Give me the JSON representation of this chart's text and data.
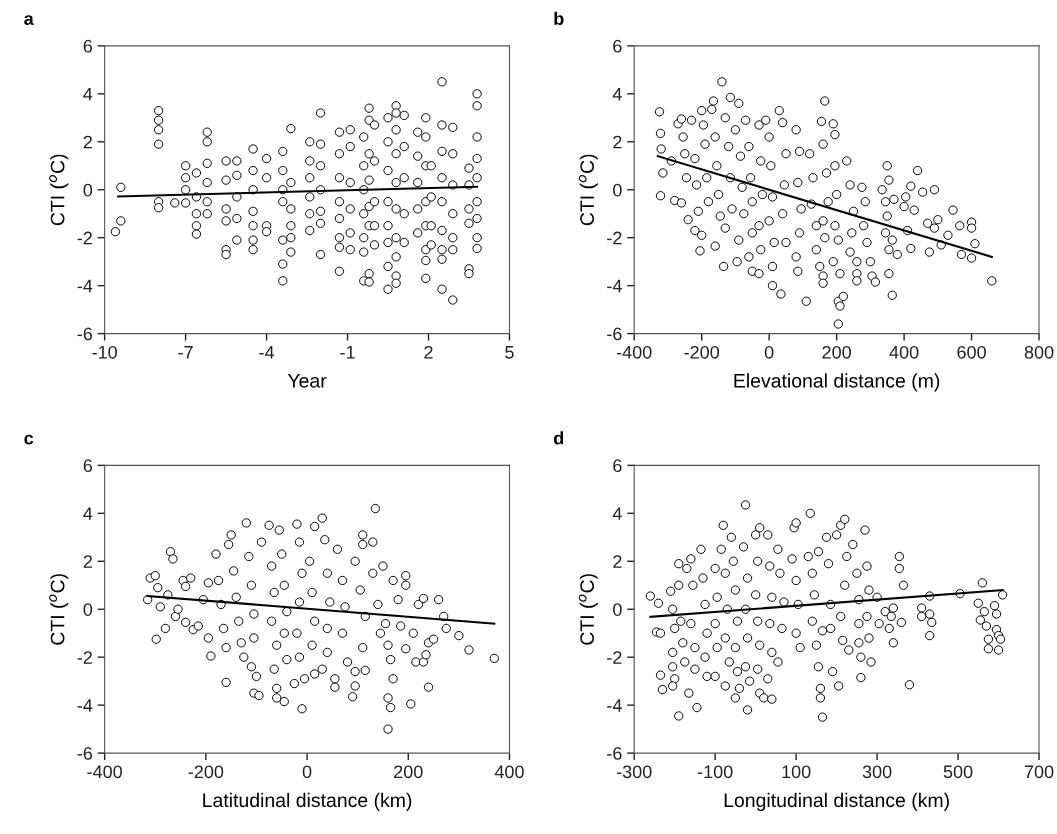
{
  "chart_data": [
    {
      "type": "scatter",
      "title": "a",
      "xlabel": "Year",
      "ylabel": "CTI ($^{o}$C)",
      "xlim": [
        -10,
        5
      ],
      "xticks": [
        -10,
        -7,
        -4,
        -1,
        2,
        5
      ],
      "ylim": [
        -6,
        6
      ],
      "yticks": [
        -6,
        -4,
        -2,
        0,
        2,
        4,
        6
      ],
      "grid": false,
      "series": [
        {
          "marker": "circle",
          "color": "#ffffff",
          "x": [
            -9.4,
            -9.4,
            -9.6,
            -8,
            -8,
            -8,
            -8,
            -8,
            -8,
            -7.4,
            -7,
            -7,
            -7,
            -7,
            -6.6,
            -6.6,
            -6.6,
            -6.6,
            -6.6,
            -6.2,
            -6.2,
            -6.2,
            -6.2,
            -6.2,
            -6.2,
            -5.5,
            -5.5,
            -5.5,
            -5.5,
            -5.5,
            -5.5,
            -5.1,
            -5.1,
            -5.1,
            -5.1,
            -5.1,
            -4.5,
            -4.5,
            -4.5,
            -4.5,
            -4.5,
            -4.5,
            -4.5,
            -4,
            -4,
            -4,
            -4,
            -3.4,
            -3.4,
            -3.4,
            -3.4,
            -3.4,
            -3.4,
            -3.4,
            -3.1,
            -3.1,
            -3.1,
            -3.1,
            -3.1,
            -3.1,
            -2.4,
            -2.4,
            -2.4,
            -2.4,
            -2.4,
            -2.4,
            -2,
            -2,
            -2,
            -2,
            -2,
            -2,
            -2,
            -1.3,
            -1.3,
            -1.3,
            -1.3,
            -1.3,
            -1.3,
            -1.3,
            -1.3,
            -0.9,
            -0.9,
            -0.9,
            -0.9,
            -0.9,
            -0.9,
            -0.4,
            -0.4,
            -0.4,
            -0.4,
            -0.4,
            -0.4,
            -0.4,
            -0.2,
            -0.2,
            -0.2,
            -0.2,
            -0.2,
            -0.2,
            -0.2,
            -0.2,
            0,
            0,
            0,
            0,
            0,
            0.5,
            0.5,
            0.5,
            0.5,
            0.5,
            0.5,
            0.5,
            0.5,
            0.8,
            0.8,
            0.8,
            0.8,
            0.8,
            0.8,
            0.8,
            0.8,
            0.8,
            0.8,
            1.1,
            1.1,
            1.1,
            1.1,
            1.1,
            1.6,
            1.6,
            1.6,
            1.6,
            1.6,
            1.9,
            1.9,
            1.9,
            1.9,
            1.9,
            1.9,
            1.9,
            1.9,
            2.1,
            2.1,
            2.1,
            2.1,
            2.5,
            2.5,
            2.5,
            2.5,
            2.5,
            2.5,
            2.5,
            2.5,
            2.5,
            2.9,
            2.9,
            2.9,
            2.9,
            2.9,
            2.9,
            2.9,
            3.5,
            3.5,
            3.5,
            3.5,
            3.5,
            3.5,
            3.8,
            3.8,
            3.8,
            3.8,
            3.8,
            3.8,
            3.8,
            3.8,
            3.8
          ],
          "values": [
            0.1,
            -1.3,
            -1.75,
            3.3,
            2.9,
            2.5,
            1.9,
            -0.5,
            -0.75,
            -0.55,
            1.0,
            0.5,
            0.0,
            -0.55,
            0.7,
            -0.3,
            -1.0,
            -1.5,
            -1.85,
            2.4,
            2.0,
            1.1,
            0.3,
            -0.5,
            -1.0,
            1.2,
            0.4,
            -0.8,
            -1.3,
            -2.5,
            -2.7,
            1.2,
            0.6,
            -0.3,
            -1.2,
            -2.1,
            1.7,
            0.8,
            0.0,
            -0.9,
            -1.5,
            -2.1,
            -2.5,
            1.3,
            0.5,
            -1.5,
            -1.75,
            1.6,
            0.8,
            0.0,
            -0.5,
            -2.1,
            -3.1,
            -3.8,
            2.55,
            0.3,
            -0.8,
            -1.5,
            -2.0,
            -2.6,
            2.0,
            1.2,
            0.5,
            -0.3,
            -1.0,
            -1.7,
            3.2,
            1.9,
            1.0,
            0.0,
            -0.9,
            -1.4,
            -2.7,
            2.4,
            1.5,
            0.5,
            -0.5,
            -1.2,
            -2.0,
            -2.4,
            -3.4,
            2.5,
            1.8,
            0.3,
            -0.8,
            -1.8,
            -2.5,
            2.2,
            1.0,
            0.0,
            -1.0,
            -2.0,
            -2.6,
            -3.8,
            3.4,
            2.9,
            1.5,
            0.4,
            -0.7,
            -1.5,
            -3.5,
            -3.85,
            2.7,
            1.2,
            -0.5,
            -1.5,
            -2.3,
            3.0,
            2.0,
            0.8,
            -0.5,
            -1.5,
            -2.2,
            -3.2,
            -4.15,
            3.5,
            3.2,
            2.5,
            1.5,
            0.3,
            -0.8,
            -2.0,
            -2.8,
            -3.6,
            -3.9,
            3.1,
            1.8,
            0.5,
            -1.0,
            -2.2,
            2.4,
            1.4,
            0.3,
            -0.8,
            -1.8,
            3.0,
            2.2,
            1.0,
            -0.5,
            -1.5,
            -2.5,
            -2.95,
            -3.7,
            1.0,
            -0.3,
            -1.5,
            -2.3,
            4.5,
            2.7,
            1.6,
            0.5,
            -0.5,
            -1.7,
            -2.5,
            -2.9,
            -4.15,
            2.6,
            1.5,
            0.2,
            -1.0,
            -2.0,
            -2.5,
            -4.6,
            0.9,
            0.2,
            -0.8,
            -1.4,
            -3.3,
            -3.5,
            4.0,
            3.5,
            2.2,
            1.3,
            0.5,
            -0.5,
            -1.2,
            -2.0,
            -2.45
          ]
        },
        {
          "type": "line",
          "color": "#000000",
          "x": [
            -9.5,
            3.8
          ],
          "values": [
            -0.28,
            0.12
          ]
        }
      ]
    },
    {
      "type": "scatter",
      "title": "b",
      "xlabel": "Elevational distance (m)",
      "ylabel": "CTI ($^{o}$C)",
      "xlim": [
        -400,
        800
      ],
      "xticks": [
        -400,
        -200,
        0,
        200,
        400,
        600,
        800
      ],
      "ylim": [
        -6,
        6
      ],
      "yticks": [
        -6,
        -4,
        -2,
        0,
        2,
        4,
        6
      ],
      "grid": false,
      "series": [
        {
          "marker": "circle",
          "color": "#ffffff",
          "x": [
            -325,
            -322,
            -320,
            -315,
            -322,
            -290,
            -280,
            -270,
            -260,
            -255,
            -250,
            -245,
            -260,
            -240,
            -230,
            -220,
            -215,
            -210,
            -220,
            -200,
            -195,
            -190,
            -185,
            -180,
            -200,
            -205,
            -170,
            -165,
            -160,
            -155,
            -150,
            -145,
            -160,
            -140,
            -130,
            -120,
            -115,
            -110,
            -130,
            -135,
            -115,
            -100,
            -90,
            -85,
            -80,
            -75,
            -90,
            -95,
            -70,
            -60,
            -55,
            -50,
            -50,
            -60,
            -50,
            -30,
            -25,
            -20,
            -30,
            -25,
            -30,
            -10,
            0,
            5,
            10,
            0,
            15,
            10,
            10,
            30,
            40,
            50,
            45,
            40,
            50,
            35,
            80,
            90,
            85,
            95,
            90,
            80,
            85,
            110,
            120,
            130,
            125,
            140,
            140,
            150,
            155,
            160,
            165,
            170,
            175,
            160,
            165,
            160,
            160,
            190,
            195,
            195,
            200,
            195,
            205,
            190,
            210,
            205,
            210,
            220,
            205,
            230,
            240,
            250,
            245,
            240,
            260,
            260,
            260,
            275,
            285,
            280,
            290,
            300,
            305,
            315,
            335,
            345,
            350,
            355,
            350,
            345,
            355,
            355,
            365,
            365,
            370,
            380,
            400,
            405,
            410,
            420,
            420,
            430,
            440,
            455,
            470,
            475,
            490,
            490,
            500,
            510,
            530,
            545,
            565,
            570,
            600,
            600,
            600,
            610,
            660
          ],
          "values": [
            3.25,
            2.35,
            1.7,
            0.7,
            -0.25,
            1.2,
            -0.45,
            2.75,
            2.95,
            2.2,
            1.5,
            0.5,
            -0.55,
            -1.25,
            2.9,
            1.3,
            0.2,
            -0.9,
            -1.7,
            3.3,
            2.7,
            1.9,
            0.5,
            -0.5,
            -1.9,
            -2.55,
            3.35,
            3.7,
            2.2,
            1.0,
            -0.2,
            -1.1,
            -2.35,
            4.5,
            3.0,
            1.8,
            0.5,
            -0.8,
            -1.6,
            -3.2,
            3.85,
            2.5,
            3.6,
            1.4,
            0.1,
            -1.0,
            -2.1,
            -3.0,
            2.9,
            1.8,
            0.5,
            -0.5,
            -1.8,
            -2.8,
            -3.4,
            2.7,
            1.2,
            -0.2,
            -1.5,
            -2.5,
            -3.5,
            2.9,
            2.2,
            1.0,
            -0.3,
            -1.3,
            -2.2,
            -3.2,
            -4.0,
            3.3,
            2.8,
            1.5,
            0.2,
            -1.0,
            -2.2,
            -4.35,
            2.5,
            1.6,
            0.3,
            -0.8,
            -1.8,
            -2.8,
            -3.4,
            -4.65,
            1.5,
            0.5,
            -0.6,
            -1.5,
            -2.5,
            -3.2,
            2.85,
            1.9,
            3.7,
            0.7,
            -0.5,
            -1.3,
            -2.0,
            -3.6,
            -3.9,
            2.75,
            2.3,
            1.0,
            -0.2,
            -1.5,
            -2.1,
            -3.0,
            -3.5,
            -4.65,
            -4.85,
            -4.45,
            -5.6,
            1.2,
            0.2,
            -0.9,
            -1.8,
            -2.6,
            -3.0,
            -3.5,
            -3.8,
            0.1,
            -0.5,
            -1.5,
            -2.2,
            -3.0,
            -3.6,
            -3.85,
            0.0,
            -0.5,
            1.0,
            0.4,
            -1.1,
            -1.8,
            -2.5,
            -3.5,
            -4.4,
            -2.1,
            -0.4,
            -2.7,
            -0.7,
            -0.3,
            -1.7,
            0.15,
            -2.45,
            -0.85,
            0.8,
            -0.1,
            -1.4,
            -2.6,
            -1.6,
            0.0,
            -1.25,
            -2.3,
            -1.9,
            -0.85,
            -1.5,
            -2.7,
            -1.35,
            -1.6,
            -2.85,
            -2.25,
            -3.8
          ]
        },
        {
          "type": "line",
          "color": "#000000",
          "x": [
            -330,
            660
          ],
          "values": [
            1.4,
            -2.8
          ]
        }
      ]
    },
    {
      "type": "scatter",
      "title": "c",
      "xlabel": "Latitudinal distance (km)",
      "ylabel": "CTI ($^{o}$C)",
      "xlim": [
        -400,
        400
      ],
      "xticks": [
        -400,
        -200,
        0,
        200,
        400
      ],
      "ylim": [
        -6,
        6
      ],
      "yticks": [
        -6,
        -4,
        -2,
        0,
        2,
        4,
        6
      ],
      "grid": false,
      "series": [
        {
          "marker": "circle",
          "color": "#ffffff",
          "x": [
            -315,
            -310,
            -300,
            -298,
            -295,
            -290,
            -280,
            -275,
            -270,
            -265,
            -260,
            -255,
            -245,
            -240,
            -240,
            -230,
            -225,
            -215,
            -205,
            -195,
            -195,
            -190,
            -180,
            -175,
            -170,
            -165,
            -160,
            -160,
            -155,
            -150,
            -145,
            -140,
            -135,
            -130,
            -125,
            -120,
            -115,
            -110,
            -105,
            -105,
            -110,
            -105,
            -95,
            -100,
            -90,
            -75,
            -70,
            -65,
            -70,
            -60,
            -65,
            -60,
            -60,
            -55,
            -50,
            -45,
            -40,
            -45,
            -40,
            -45,
            -20,
            -15,
            -10,
            -15,
            -20,
            -15,
            -25,
            -10,
            -5,
            5,
            10,
            15,
            10,
            15,
            15,
            30,
            35,
            40,
            45,
            40,
            40,
            30,
            55,
            55,
            60,
            70,
            75,
            70,
            80,
            90,
            95,
            95,
            95,
            110,
            110,
            105,
            115,
            110,
            115,
            130,
            135,
            130,
            140,
            145,
            150,
            155,
            160,
            160,
            165,
            160,
            170,
            165,
            170,
            180,
            185,
            195,
            195,
            195,
            205,
            210,
            215,
            220,
            230,
            230,
            235,
            240,
            240,
            250,
            260,
            270,
            275,
            300,
            320,
            370
          ],
          "values": [
            0.4,
            1.3,
            1.4,
            -1.25,
            0.9,
            0.1,
            -0.8,
            0.6,
            2.4,
            2.1,
            -0.3,
            0.0,
            1.2,
            0.95,
            -0.55,
            1.3,
            -0.85,
            -0.7,
            0.4,
            1.1,
            -1.2,
            -1.95,
            2.3,
            1.2,
            0.2,
            -0.8,
            -1.6,
            -3.05,
            2.7,
            3.1,
            1.6,
            0.5,
            -0.5,
            -1.4,
            -2.0,
            3.6,
            2.2,
            1.0,
            -0.2,
            -1.2,
            -2.4,
            -3.5,
            -3.6,
            -2.8,
            2.8,
            3.5,
            1.8,
            0.7,
            -0.5,
            -1.5,
            -2.5,
            -3.3,
            -3.7,
            3.3,
            2.3,
            1.0,
            -0.1,
            -1.0,
            -2.1,
            -3.85,
            3.55,
            2.8,
            1.5,
            0.3,
            -1.0,
            -2.0,
            -3.1,
            -4.15,
            -2.9,
            2.0,
            0.7,
            -0.5,
            -1.5,
            -2.7,
            3.45,
            3.8,
            2.9,
            1.5,
            0.3,
            -0.8,
            -1.8,
            -2.5,
            -3.25,
            -2.9,
            2.5,
            1.2,
            0.1,
            -1.0,
            -2.2,
            -3.65,
            -3.2,
            -2.6,
            2.0,
            3.1,
            2.7,
            0.8,
            -0.3,
            -1.6,
            -2.55,
            2.8,
            4.2,
            1.5,
            0.2,
            -1.0,
            1.8,
            -0.6,
            -1.5,
            -3.7,
            -4.1,
            -5.0,
            -2.9,
            -2.1,
            1.2,
            0.4,
            -0.7,
            1.4,
            1.0,
            -1.65,
            -3.95,
            -1.0,
            -2.2,
            0.2,
            0.45,
            -2.2,
            -1.9,
            -1.4,
            -3.25,
            -1.25,
            0.4,
            -0.3,
            -0.8,
            -1.1,
            -1.7,
            -2.05
          ]
        },
        {
          "type": "line",
          "color": "#000000",
          "x": [
            -315,
            370
          ],
          "values": [
            0.55,
            -0.6
          ]
        }
      ]
    },
    {
      "type": "scatter",
      "title": "d",
      "xlabel": "Longitudinal distance (km)",
      "ylabel": "CTI ($^{o}$C)",
      "xlim": [
        -300,
        700
      ],
      "xticks": [
        -300,
        -100,
        100,
        300,
        500,
        700
      ],
      "ylim": [
        -6,
        6
      ],
      "yticks": [
        -6,
        -4,
        -2,
        0,
        2,
        4,
        6
      ],
      "grid": false,
      "series": [
        {
          "marker": "circle",
          "color": "#ffffff",
          "x": [
            -260,
            -240,
            -245,
            -235,
            -235,
            -230,
            -210,
            -205,
            -200,
            -205,
            -205,
            -200,
            -205,
            -190,
            -190,
            -185,
            -190,
            -180,
            -175,
            -170,
            -160,
            -155,
            -160,
            -150,
            -165,
            -145,
            -150,
            -135,
            -130,
            -125,
            -120,
            -125,
            -120,
            -100,
            -95,
            -100,
            -95,
            -100,
            -85,
            -80,
            -75,
            -70,
            -75,
            -65,
            -75,
            -60,
            -55,
            -50,
            -45,
            -50,
            -45,
            -50,
            -40,
            -25,
            -30,
            -20,
            -25,
            -20,
            -25,
            -20,
            -15,
            0,
            5,
            10,
            0,
            5,
            10,
            5,
            10,
            20,
            30,
            35,
            40,
            35,
            40,
            30,
            40,
            55,
            60,
            70,
            65,
            55,
            95,
            100,
            90,
            100,
            105,
            100,
            110,
            135,
            130,
            140,
            145,
            140,
            150,
            155,
            160,
            160,
            165,
            155,
            165,
            175,
            180,
            185,
            185,
            190,
            205,
            200,
            210,
            220,
            225,
            220,
            210,
            215,
            230,
            240,
            250,
            255,
            255,
            255,
            260,
            260,
            270,
            275,
            280,
            275,
            280,
            285,
            300,
            305,
            320,
            335,
            340,
            340,
            330,
            355,
            355,
            360,
            365,
            380,
            410,
            410,
            430,
            430,
            435,
            430,
            505,
            550,
            555,
            560,
            565,
            570,
            575,
            575,
            590,
            595,
            595,
            600,
            600,
            605,
            610
          ],
          "values": [
            0.55,
            0.25,
            -0.95,
            -1.0,
            -2.75,
            -3.35,
            0.75,
            0.0,
            -0.8,
            -1.8,
            -2.4,
            -2.9,
            -3.2,
            1.9,
            1.0,
            -0.5,
            -4.45,
            -1.4,
            -2.2,
            1.7,
            2.1,
            1.0,
            -0.6,
            -1.6,
            -3.5,
            -4.1,
            -2.5,
            2.5,
            1.3,
            0.2,
            -1.0,
            -2.0,
            -2.8,
            1.7,
            0.5,
            -0.6,
            -1.6,
            -2.8,
            2.5,
            3.5,
            1.5,
            0.0,
            -1.2,
            -2.2,
            -3.2,
            3.0,
            2.0,
            0.8,
            -0.5,
            -1.6,
            -2.6,
            -3.7,
            -3.3,
            4.35,
            2.6,
            1.3,
            0.0,
            -1.2,
            -2.4,
            -4.2,
            -3.0,
            3.1,
            2.0,
            3.4,
            0.6,
            -0.5,
            -1.5,
            -2.5,
            -3.5,
            -3.7,
            3.1,
            1.8,
            0.5,
            -0.6,
            -1.8,
            -2.9,
            -3.75,
            2.5,
            1.5,
            0.3,
            -0.8,
            -2.2,
            3.4,
            3.6,
            2.1,
            1.2,
            0.2,
            -1.0,
            -1.6,
            4.0,
            2.2,
            1.5,
            0.6,
            -0.5,
            -1.5,
            -2.4,
            -3.3,
            -3.7,
            -4.5,
            2.4,
            -0.9,
            3.0,
            1.9,
            0.2,
            -0.8,
            -2.6,
            -3.2,
            3.1,
            3.5,
            3.75,
            2.2,
            1.0,
            -0.3,
            -1.3,
            -1.7,
            2.7,
            1.5,
            0.4,
            -0.6,
            -1.4,
            -2.0,
            -2.85,
            3.3,
            1.8,
            0.8,
            -0.3,
            -1.2,
            -2.2,
            0.5,
            -0.6,
            -0.1,
            -0.3,
            0.05,
            -1.4,
            -0.8,
            2.2,
            1.7,
            -0.55,
            1.0,
            -3.15,
            0.05,
            -0.3,
            0.55,
            -0.2,
            -0.55,
            -1.1,
            0.65,
            0.25,
            -0.45,
            1.1,
            -0.1,
            -0.7,
            -1.25,
            -1.65,
            0.15,
            -0.2,
            -0.85,
            -1.1,
            -1.7,
            -1.25,
            0.6
          ]
        },
        {
          "type": "line",
          "color": "#000000",
          "x": [
            -260,
            610
          ],
          "values": [
            -0.32,
            0.8
          ]
        }
      ]
    }
  ]
}
